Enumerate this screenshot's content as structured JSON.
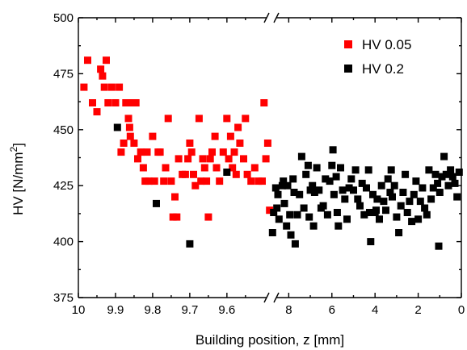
{
  "chart_data": {
    "type": "scatter",
    "xlabel": "Building position, z [mm]",
    "ylabel_main": "HV [N/mm",
    "ylabel_sup": "2",
    "ylabel_end": "]",
    "ylim": [
      375,
      500
    ],
    "yticks": [
      375,
      400,
      425,
      450,
      475,
      500
    ],
    "axis_break": true,
    "left_segment": {
      "xlim": [
        10,
        9.48
      ],
      "ticks": [
        "10",
        "9.9",
        "9.8",
        "9.7",
        "9.6"
      ]
    },
    "right_segment": {
      "xlim": [
        8.8,
        0
      ],
      "ticks": [
        "8",
        "6",
        "4",
        "2",
        "0"
      ]
    },
    "legend_position": "top-right",
    "series": [
      {
        "name": "HV 0.05",
        "color": "#ff0000",
        "points": [
          [
            9.985,
            469
          ],
          [
            9.975,
            481
          ],
          [
            9.962,
            462
          ],
          [
            9.95,
            458
          ],
          [
            9.94,
            477
          ],
          [
            9.935,
            474
          ],
          [
            9.93,
            469
          ],
          [
            9.925,
            481
          ],
          [
            9.92,
            462
          ],
          [
            9.91,
            469
          ],
          [
            9.9,
            462
          ],
          [
            9.89,
            469
          ],
          [
            9.885,
            440
          ],
          [
            9.878,
            444
          ],
          [
            9.872,
            462
          ],
          [
            9.865,
            455
          ],
          [
            9.862,
            451
          ],
          [
            9.86,
            447
          ],
          [
            9.855,
            462
          ],
          [
            9.85,
            444
          ],
          [
            9.845,
            462
          ],
          [
            9.84,
            437
          ],
          [
            9.832,
            440
          ],
          [
            9.825,
            433
          ],
          [
            9.82,
            427
          ],
          [
            9.815,
            440
          ],
          [
            9.81,
            427
          ],
          [
            9.8,
            447
          ],
          [
            9.795,
            427
          ],
          [
            9.785,
            440
          ],
          [
            9.78,
            440
          ],
          [
            9.77,
            427
          ],
          [
            9.765,
            433
          ],
          [
            9.758,
            455
          ],
          [
            9.75,
            427
          ],
          [
            9.745,
            411
          ],
          [
            9.74,
            420
          ],
          [
            9.735,
            411
          ],
          [
            9.73,
            437
          ],
          [
            9.72,
            430
          ],
          [
            9.712,
            430
          ],
          [
            9.705,
            437
          ],
          [
            9.7,
            444
          ],
          [
            9.695,
            440
          ],
          [
            9.69,
            430
          ],
          [
            9.685,
            425
          ],
          [
            9.675,
            455
          ],
          [
            9.67,
            427
          ],
          [
            9.665,
            437
          ],
          [
            9.66,
            433
          ],
          [
            9.655,
            427
          ],
          [
            9.65,
            411
          ],
          [
            9.645,
            437
          ],
          [
            9.64,
            440
          ],
          [
            9.632,
            447
          ],
          [
            9.628,
            433
          ],
          [
            9.62,
            427
          ],
          [
            9.61,
            440
          ],
          [
            9.6,
            455
          ],
          [
            9.595,
            437
          ],
          [
            9.59,
            447
          ],
          [
            9.585,
            433
          ],
          [
            9.58,
            440
          ],
          [
            9.575,
            430
          ],
          [
            9.57,
            451
          ],
          [
            9.565,
            444
          ],
          [
            9.555,
            437
          ],
          [
            9.55,
            455
          ],
          [
            9.545,
            430
          ],
          [
            9.535,
            427
          ],
          [
            9.525,
            433
          ],
          [
            9.515,
            427
          ],
          [
            9.505,
            427
          ],
          [
            9.5,
            462
          ],
          [
            9.495,
            437
          ],
          [
            9.49,
            444
          ],
          [
            9.485,
            414
          ]
        ]
      },
      {
        "name": "HV 0.2",
        "color": "#000000",
        "points": [
          [
            9.895,
            451
          ],
          [
            9.79,
            417
          ],
          [
            9.7,
            399
          ],
          [
            9.6,
            431
          ],
          [
            8.75,
            404
          ],
          [
            8.7,
            413
          ],
          [
            8.6,
            424
          ],
          [
            8.55,
            415
          ],
          [
            8.5,
            421
          ],
          [
            8.45,
            410
          ],
          [
            8.3,
            425
          ],
          [
            8.25,
            427
          ],
          [
            8.2,
            417
          ],
          [
            8.1,
            407
          ],
          [
            8.05,
            425
          ],
          [
            7.95,
            412
          ],
          [
            7.9,
            403
          ],
          [
            7.8,
            428
          ],
          [
            7.75,
            422
          ],
          [
            7.7,
            399
          ],
          [
            7.6,
            412
          ],
          [
            7.5,
            421
          ],
          [
            7.4,
            438
          ],
          [
            7.3,
            415
          ],
          [
            7.2,
            430
          ],
          [
            7.1,
            434
          ],
          [
            7.05,
            411
          ],
          [
            7.0,
            423
          ],
          [
            6.9,
            425
          ],
          [
            6.85,
            407
          ],
          [
            6.8,
            422
          ],
          [
            6.7,
            433
          ],
          [
            6.6,
            423
          ],
          [
            6.5,
            415
          ],
          [
            6.4,
            416
          ],
          [
            6.3,
            428
          ],
          [
            6.2,
            412
          ],
          [
            6.1,
            427
          ],
          [
            6.0,
            434
          ],
          [
            5.95,
            441
          ],
          [
            5.9,
            421
          ],
          [
            5.8,
            429
          ],
          [
            5.75,
            413
          ],
          [
            5.7,
            407
          ],
          [
            5.6,
            433
          ],
          [
            5.5,
            423
          ],
          [
            5.4,
            419
          ],
          [
            5.3,
            410
          ],
          [
            5.2,
            424
          ],
          [
            5.1,
            428
          ],
          [
            5.0,
            423
          ],
          [
            4.9,
            432
          ],
          [
            4.8,
            419
          ],
          [
            4.7,
            416
          ],
          [
            4.6,
            426
          ],
          [
            4.5,
            412
          ],
          [
            4.4,
            424
          ],
          [
            4.3,
            432
          ],
          [
            4.25,
            413
          ],
          [
            4.2,
            400
          ],
          [
            4.1,
            421
          ],
          [
            4.0,
            413
          ],
          [
            3.95,
            414
          ],
          [
            3.9,
            419
          ],
          [
            3.8,
            410
          ],
          [
            3.7,
            425
          ],
          [
            3.6,
            418
          ],
          [
            3.5,
            414
          ],
          [
            3.4,
            428
          ],
          [
            3.3,
            422
          ],
          [
            3.25,
            432
          ],
          [
            3.2,
            420
          ],
          [
            3.1,
            425
          ],
          [
            3.0,
            411
          ],
          [
            2.9,
            404
          ],
          [
            2.8,
            416
          ],
          [
            2.7,
            422
          ],
          [
            2.6,
            430
          ],
          [
            2.5,
            413
          ],
          [
            2.4,
            418
          ],
          [
            2.3,
            409
          ],
          [
            2.2,
            421
          ],
          [
            2.1,
            427
          ],
          [
            2.0,
            410
          ],
          [
            1.9,
            418
          ],
          [
            1.8,
            424
          ],
          [
            1.7,
            415
          ],
          [
            1.6,
            412
          ],
          [
            1.5,
            432
          ],
          [
            1.4,
            419
          ],
          [
            1.3,
            424
          ],
          [
            1.2,
            430
          ],
          [
            1.1,
            426
          ],
          [
            1.05,
            398
          ],
          [
            1.0,
            422
          ],
          [
            0.9,
            429
          ],
          [
            0.8,
            438
          ],
          [
            0.7,
            430
          ],
          [
            0.6,
            425
          ],
          [
            0.5,
            432
          ],
          [
            0.4,
            429
          ],
          [
            0.3,
            426
          ],
          [
            0.2,
            420
          ],
          [
            0.1,
            431
          ]
        ]
      }
    ]
  }
}
